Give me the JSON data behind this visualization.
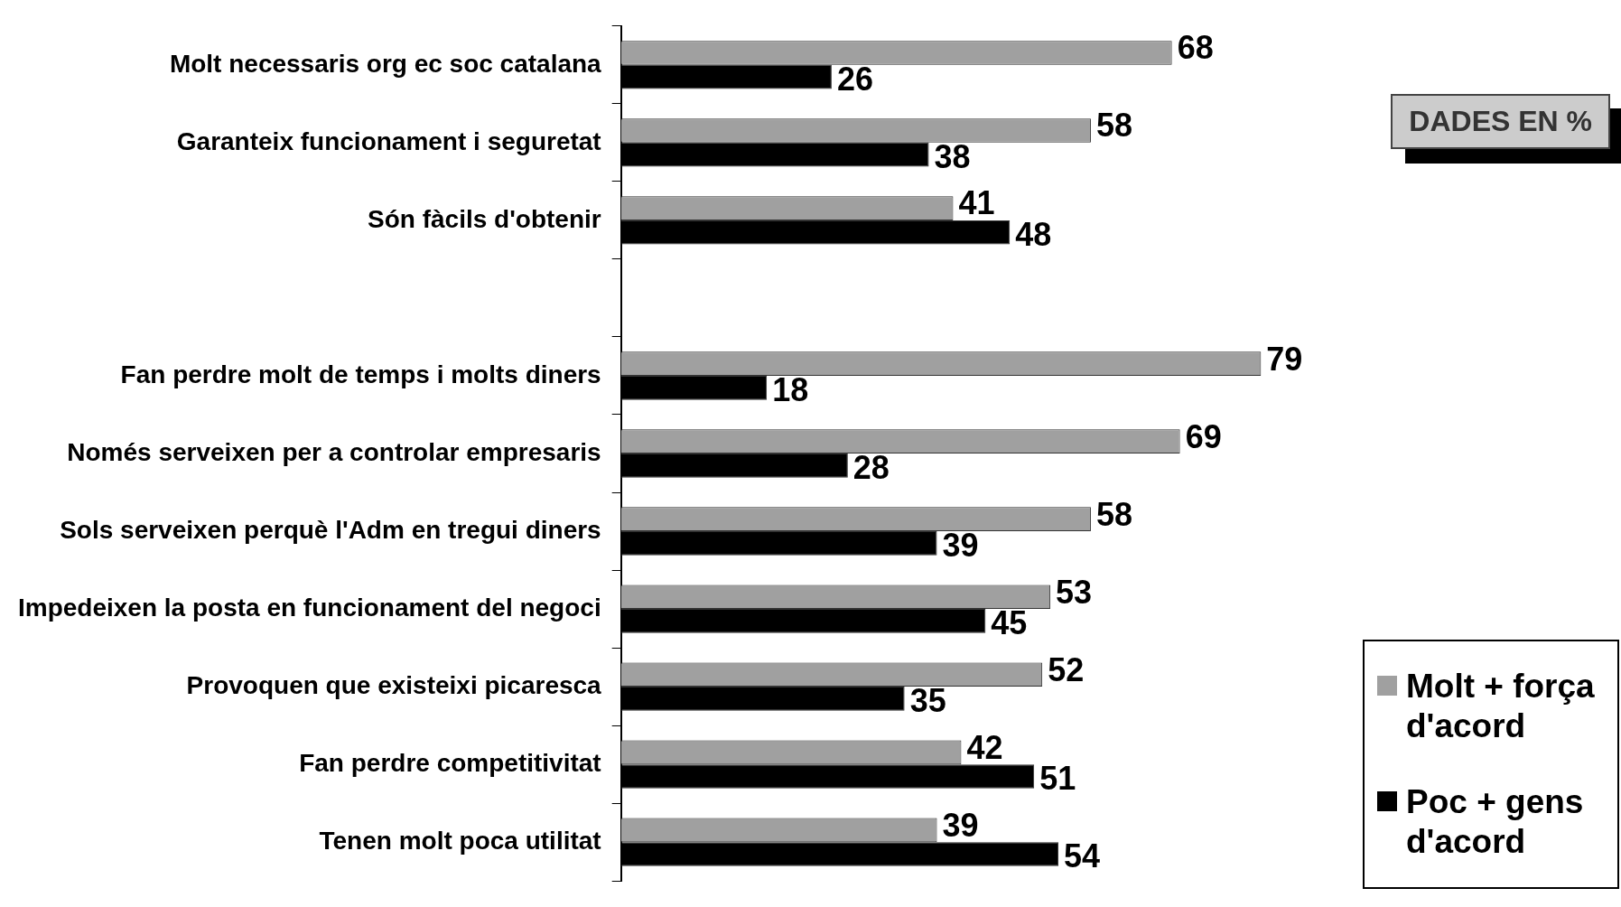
{
  "chart_data": {
    "type": "bar",
    "orientation": "horizontal",
    "categories": [
      "Molt necessaris org ec soc catalana",
      "Garanteix funcionament i seguretat",
      "Són fàcils d'obtenir",
      null,
      "Fan perdre molt de temps i molts diners",
      "Només serveixen per a controlar empresaris",
      "Sols serveixen perquè l'Adm en tregui diners",
      "Impedeixen la posta en funcionament del negoci",
      "Provoquen que existeixi picaresca",
      "Fan perdre competitivitat",
      "Tenen molt poca utilitat"
    ],
    "series": [
      {
        "name": "Molt + força d'acord",
        "color": "#a0a0a0",
        "values": [
          68,
          58,
          41,
          null,
          79,
          69,
          58,
          53,
          52,
          42,
          39
        ]
      },
      {
        "name": "Poc + gens d'acord",
        "color": "#000000",
        "values": [
          26,
          38,
          48,
          null,
          18,
          28,
          39,
          45,
          35,
          51,
          54
        ]
      }
    ],
    "data_labels": true,
    "legend": "bottom right",
    "tick_labels": "y",
    "annotations": [
      "DADES EN %"
    ]
  }
}
